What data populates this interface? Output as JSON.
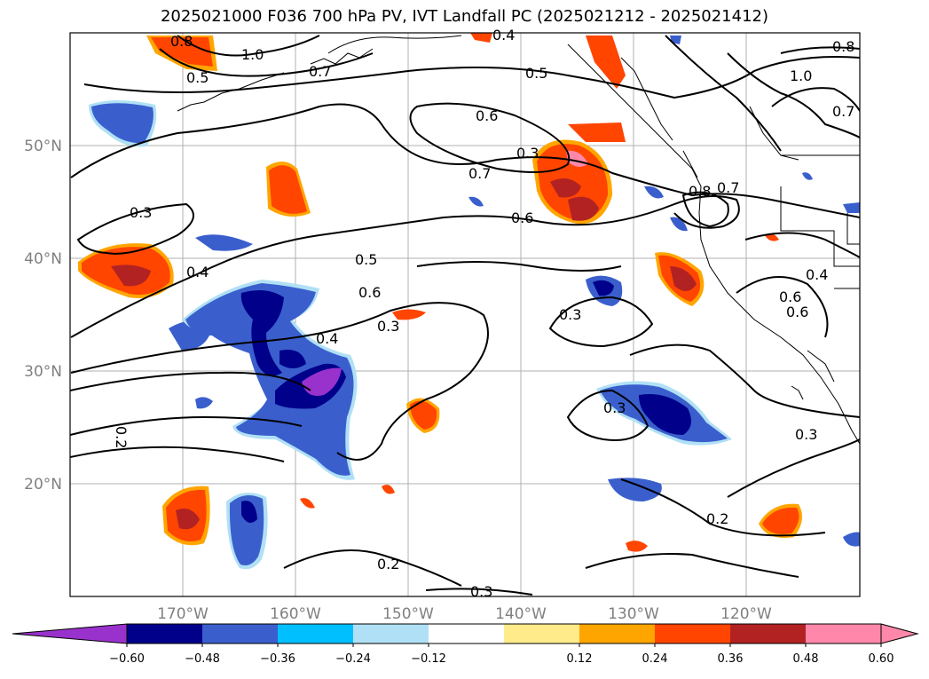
{
  "title": "2025021000 F036 700 hPa PV, IVT Landfall PC (2025021212 - 2025021412)",
  "map": {
    "lon_range": [
      -180,
      -110
    ],
    "lat_range": [
      10,
      60
    ],
    "lat_labels": [
      "50°N",
      "40°N",
      "30°N",
      "20°N"
    ],
    "lon_labels": [
      "170°W",
      "160°W",
      "150°W",
      "140°W",
      "130°W",
      "120°W"
    ]
  },
  "contour_labels": [
    "0.8",
    "1.0",
    "0.5",
    "0.7",
    "0.4",
    "0.5",
    "0.6",
    "1.0",
    "0.8",
    "0.7",
    "0.6",
    "0.7",
    "0.6",
    "0.8",
    "0.7",
    "0.3",
    "0.4",
    "0.5",
    "0.6",
    "0.4",
    "0.3",
    "0.3",
    "0.4",
    "0.6",
    "0.3",
    "0.3",
    "0.2",
    "0.2",
    "0.3",
    "0.2",
    "0.3"
  ],
  "colorbar": {
    "ticks": [
      "−0.60",
      "−0.48",
      "−0.36",
      "−0.24",
      "−0.12",
      "0.12",
      "0.24",
      "0.36",
      "0.48",
      "0.60"
    ],
    "colors": [
      "#9932cc",
      "#00008b",
      "#3a5fcd",
      "#00bfff",
      "#b0e0f5",
      "#ffffff",
      "#ffeb8a",
      "#ffa500",
      "#ff4500",
      "#b22222",
      "#ff88aa",
      "#ff88aa"
    ]
  }
}
